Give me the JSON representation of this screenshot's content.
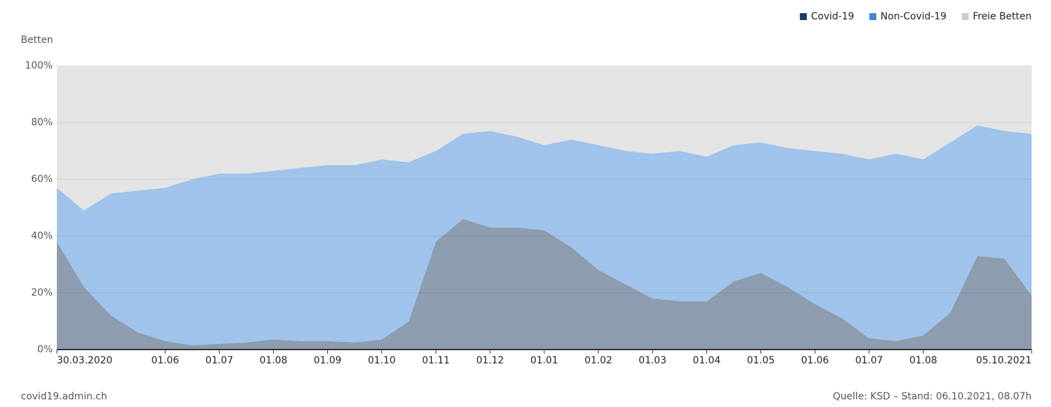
{
  "chart_data": {
    "type": "stacked_area",
    "y_label": "Betten",
    "categories": [
      "30.03.2020",
      null,
      null,
      null,
      "01.06",
      null,
      "01.07",
      null,
      "01.08",
      null,
      "01.09",
      null,
      "01.10",
      null,
      "01.11",
      null,
      "01.12",
      null,
      "01.01",
      null,
      "01.02",
      null,
      "01.03",
      null,
      "01.04",
      null,
      "01.05",
      null,
      "01.06",
      null,
      "01.07",
      null,
      "01.08",
      null,
      null,
      null,
      "05.10.2021"
    ],
    "series": [
      {
        "name": "Covid-19",
        "color": "#1b3a5e",
        "values": [
          38,
          22,
          12,
          6,
          3,
          1.5,
          2,
          2.5,
          3.5,
          3,
          3,
          2.5,
          3.5,
          10,
          38,
          46,
          43,
          43,
          42,
          36,
          28,
          23,
          18,
          17,
          17,
          24,
          27,
          22,
          16,
          11,
          4,
          3,
          5,
          13,
          33,
          32,
          19
        ]
      },
      {
        "name": "Non-Covid-19",
        "color": "#3f88d6",
        "values": [
          19,
          27,
          43,
          50,
          54,
          58.5,
          60,
          59.5,
          59.5,
          61,
          62,
          62.5,
          63.5,
          56,
          32,
          30,
          34,
          32,
          30,
          38,
          44,
          47,
          51,
          53,
          51,
          48,
          46,
          49,
          54,
          58,
          63,
          66,
          62,
          60,
          46,
          45,
          57
        ]
      },
      {
        "name": "Freie Betten",
        "color": "#cacaca",
        "values": [
          43,
          51,
          45,
          44,
          43,
          40,
          38,
          38,
          37,
          36,
          35,
          35,
          33,
          34,
          30,
          24,
          23,
          25,
          28,
          26,
          28,
          30,
          31,
          30,
          32,
          28,
          27,
          29,
          30,
          31,
          33,
          31,
          33,
          27,
          21,
          23,
          24
        ]
      }
    ],
    "ylim": [
      0,
      100
    ],
    "yticks": [
      {
        "value": 0,
        "label": "0%"
      },
      {
        "value": 20,
        "label": "20%"
      },
      {
        "value": 40,
        "label": "40%"
      },
      {
        "value": 60,
        "label": "60%"
      },
      {
        "value": 80,
        "label": "80%"
      },
      {
        "value": 100,
        "label": "100%"
      }
    ],
    "grid": true,
    "legend": "top-right",
    "source_site": "covid19.admin.ch",
    "source_note": "Quelle: KSD – Stand: 06.10.2021, 08.07h"
  }
}
